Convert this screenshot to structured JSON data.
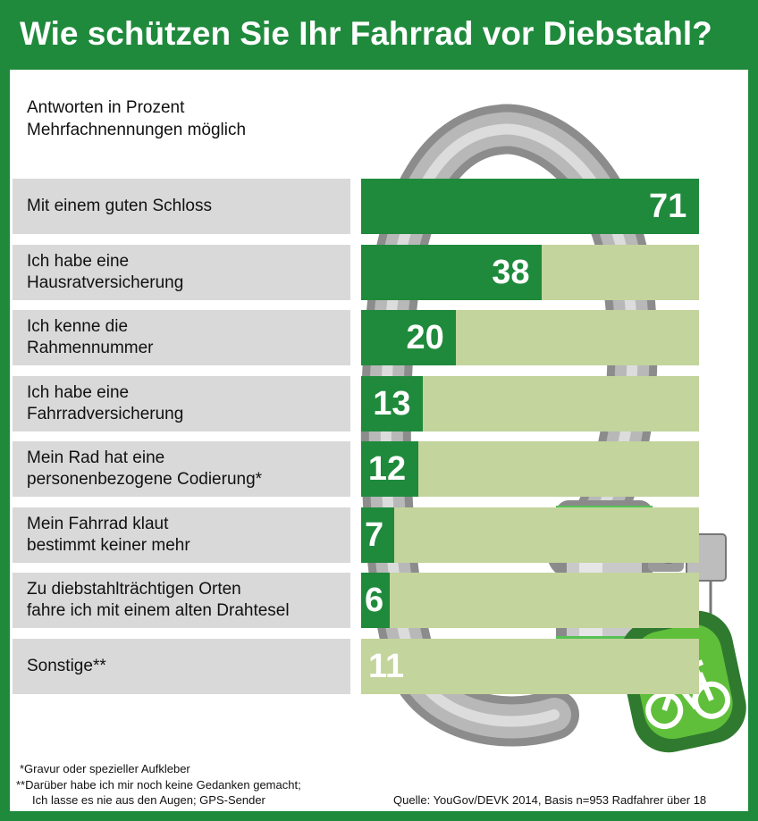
{
  "header": {
    "title": "Wie schützen Sie Ihr Fahrrad vor Diebstahl?"
  },
  "subtitle_line1": "Antworten in Prozent",
  "subtitle_line2": "Mehrfachnennungen möglich",
  "footnotes": {
    "note1": "*Gravur oder spezieller Aufkleber",
    "note2_line1": "**Darüber habe ich mir noch keine Gedanken gemacht;",
    "note2_line2": "Ich lasse es nie aus den Augen; GPS-Sender",
    "source": "Quelle: YouGov/DEVK 2014, Basis n=953 Radfahrer über 18"
  },
  "colors": {
    "brand_green": "#1f8a3c",
    "track_green": "#c3d49c",
    "label_gray": "#d9d9d9"
  },
  "chart_data": {
    "type": "bar",
    "orientation": "horizontal",
    "title": "Wie schützen Sie Ihr Fahrrad vor Diebstahl?",
    "unit": "Prozent",
    "xlim": [
      0,
      71
    ],
    "categories": [
      [
        "Mit einem guten Schloss"
      ],
      [
        "Ich habe eine",
        "Hausratversicherung"
      ],
      [
        "Ich kenne die",
        "Rahmennummer"
      ],
      [
        "Ich habe eine",
        "Fahrradversicherung"
      ],
      [
        "Mein Rad hat eine",
        "personenbezogene Codierung*"
      ],
      [
        "Mein Fahrrad klaut",
        "bestimmt keiner mehr"
      ],
      [
        "Zu diebstahlträchtigen Orten",
        "fahre ich mit einem alten Drahtesel"
      ],
      [
        "Sonstige**"
      ]
    ],
    "values": [
      71,
      38,
      20,
      13,
      12,
      7,
      6,
      11
    ],
    "value_labels": [
      "71",
      "38",
      "20",
      "13",
      "12",
      "7",
      "6",
      "11"
    ]
  }
}
